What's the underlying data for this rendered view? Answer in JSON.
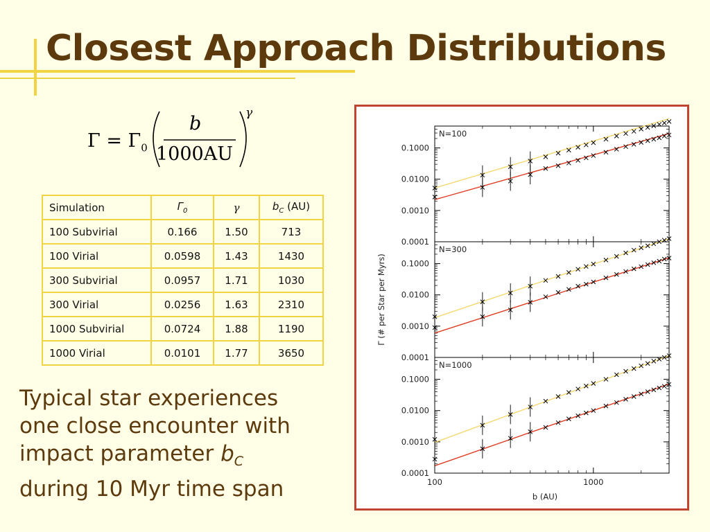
{
  "slide": {
    "title": "Closest Approach Distributions",
    "formula": {
      "lhs": "Γ = Γ",
      "lhs_sub": "0",
      "numerator": "b",
      "denominator": "1000AU",
      "exponent": "γ"
    },
    "caption": {
      "line1": "Typical star experiences",
      "line2": "one close encounter with",
      "line3_prefix": "impact parameter ",
      "line3_var": "b",
      "line3_sub": "C",
      "line4": "during 10 Myr time span"
    }
  },
  "table": {
    "headers": {
      "simulation": "Simulation",
      "gamma0": "Γ",
      "gamma0_sub": "0",
      "gamma": "γ",
      "bc_var": "b",
      "bc_sub": "C",
      "bc_unit": " (AU)"
    },
    "rows": [
      {
        "sim": "100 Subvirial",
        "g0": "0.166",
        "g": "1.50",
        "bc": "713"
      },
      {
        "sim": "100 Virial",
        "g0": "0.0598",
        "g": "1.43",
        "bc": "1430"
      },
      {
        "sim": "300 Subvirial",
        "g0": "0.0957",
        "g": "1.71",
        "bc": "1030"
      },
      {
        "sim": "300 Virial",
        "g0": "0.0256",
        "g": "1.63",
        "bc": "2310"
      },
      {
        "sim": "1000 Subvirial",
        "g0": "0.0724",
        "g": "1.88",
        "bc": "1190"
      },
      {
        "sim": "1000 Virial",
        "g0": "0.0101",
        "g": "1.77",
        "bc": "3650"
      }
    ]
  },
  "chart_data": {
    "type": "scatter",
    "xlabel": "b (AU)",
    "ylabel": "Γ (# per Star per Myrs)",
    "x_scale": "log",
    "y_scale": "log",
    "xlim": [
      100,
      3000
    ],
    "ylim": [
      0.0001,
      0.5
    ],
    "x_ticks": [
      "100",
      "1000"
    ],
    "y_ticks": [
      "0.0001",
      "0.0010",
      "0.0100",
      "0.1000"
    ],
    "colors": {
      "subvirial_line": "#F5D870",
      "virial_line": "#DE3C22",
      "frame": "#C1442E"
    },
    "panels": [
      {
        "label": "N=100",
        "series": [
          {
            "fit_gamma0": 0.166,
            "fit_gamma": 1.5,
            "x": [
              100,
              200,
              300,
              400,
              500,
              600,
              700,
              800,
              900,
              1000,
              1200,
              1400,
              1600,
              1800,
              2000,
              2200,
              2400,
              2600,
              2800,
              3000
            ],
            "y": [
              0.0052,
              0.0135,
              0.025,
              0.038,
              0.052,
              0.068,
              0.085,
              0.105,
              0.125,
              0.147,
              0.19,
              0.24,
              0.29,
              0.34,
              0.4,
              0.45,
              0.51,
              0.57,
              0.63,
              0.7
            ]
          },
          {
            "fit_gamma0": 0.0598,
            "fit_gamma": 1.43,
            "x": [
              100,
              200,
              300,
              400,
              500,
              600,
              700,
              800,
              900,
              1000,
              1200,
              1400,
              1600,
              1800,
              2000,
              2200,
              2400,
              2600,
              2800,
              3000
            ],
            "y": [
              0.0027,
              0.0055,
              0.0087,
              0.014,
              0.022,
              0.027,
              0.033,
              0.04,
              0.048,
              0.057,
              0.073,
              0.091,
              0.11,
              0.13,
              0.15,
              0.17,
              0.19,
              0.21,
              0.24,
              0.26
            ]
          }
        ]
      },
      {
        "label": "N=300",
        "series": [
          {
            "fit_gamma0": 0.0957,
            "fit_gamma": 1.71,
            "x": [
              100,
              200,
              300,
              400,
              500,
              600,
              700,
              800,
              900,
              1000,
              1200,
              1400,
              1600,
              1800,
              2000,
              2200,
              2400,
              2600,
              2800,
              3000
            ],
            "y": [
              0.002,
              0.006,
              0.0115,
              0.019,
              0.029,
              0.039,
              0.052,
              0.066,
              0.081,
              0.097,
              0.13,
              0.17,
              0.22,
              0.27,
              0.32,
              0.37,
              0.43,
              0.5,
              0.56,
              0.63
            ]
          },
          {
            "fit_gamma0": 0.0256,
            "fit_gamma": 1.63,
            "x": [
              100,
              200,
              300,
              400,
              500,
              600,
              700,
              800,
              900,
              1000,
              1200,
              1400,
              1600,
              1800,
              2000,
              2200,
              2400,
              2600,
              2800,
              3000
            ],
            "y": [
              0.0009,
              0.002,
              0.0033,
              0.0058,
              0.0087,
              0.012,
              0.015,
              0.019,
              0.022,
              0.026,
              0.035,
              0.045,
              0.056,
              0.068,
              0.08,
              0.093,
              0.107,
              0.12,
              0.14,
              0.15
            ]
          }
        ]
      },
      {
        "label": "N=1000",
        "series": [
          {
            "fit_gamma0": 0.0724,
            "fit_gamma": 1.88,
            "x": [
              100,
              200,
              300,
              400,
              500,
              600,
              700,
              800,
              900,
              1000,
              1200,
              1400,
              1600,
              1800,
              2000,
              2200,
              2400,
              2600,
              2800,
              3000
            ],
            "y": [
              0.0012,
              0.0034,
              0.0075,
              0.013,
              0.02,
              0.028,
              0.038,
              0.049,
              0.061,
              0.074,
              0.1,
              0.14,
              0.18,
              0.22,
              0.27,
              0.32,
              0.38,
              0.44,
              0.5,
              0.57
            ]
          },
          {
            "fit_gamma0": 0.0101,
            "fit_gamma": 1.77,
            "x": [
              100,
              200,
              300,
              400,
              500,
              600,
              700,
              800,
              900,
              1000,
              1200,
              1400,
              1600,
              1800,
              2000,
              2200,
              2400,
              2600,
              2800,
              3000
            ],
            "y": [
              0.00028,
              0.0006,
              0.0013,
              0.0021,
              0.0029,
              0.0041,
              0.0054,
              0.0068,
              0.0084,
              0.01,
              0.014,
              0.018,
              0.023,
              0.028,
              0.034,
              0.04,
              0.046,
              0.053,
              0.06,
              0.069
            ]
          }
        ]
      }
    ]
  }
}
